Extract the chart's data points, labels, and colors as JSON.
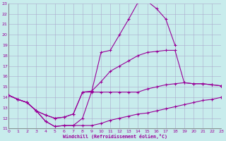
{
  "background_color": "#c8ecec",
  "grid_color": "#aaaacc",
  "line_color": "#990099",
  "xlabel": "Windchill (Refroidissement éolien,°C)",
  "xlim": [
    0,
    23
  ],
  "ylim": [
    11,
    23
  ],
  "xticks": [
    0,
    1,
    2,
    3,
    4,
    5,
    6,
    7,
    8,
    9,
    10,
    11,
    12,
    13,
    14,
    15,
    16,
    17,
    18,
    19,
    20,
    21,
    22,
    23
  ],
  "yticks": [
    11,
    12,
    13,
    14,
    15,
    16,
    17,
    18,
    19,
    20,
    21,
    22,
    23
  ],
  "line_big_x": [
    0,
    1,
    2,
    3,
    4,
    5,
    6,
    7,
    8,
    9,
    10,
    11,
    12,
    13,
    14,
    15,
    16,
    17,
    18
  ],
  "line_big_y": [
    14.2,
    13.8,
    13.5,
    12.7,
    11.7,
    11.2,
    11.3,
    11.3,
    12.0,
    14.6,
    18.3,
    18.5,
    20.0,
    21.5,
    23.1,
    23.2,
    22.5,
    21.5,
    19.0
  ],
  "line_a_x": [
    0,
    1,
    2,
    3,
    4,
    5,
    6,
    7,
    8,
    9,
    10,
    11,
    12,
    13,
    14,
    15,
    16,
    17,
    18,
    19,
    20,
    21,
    22,
    23
  ],
  "line_a_y": [
    14.2,
    13.8,
    13.5,
    12.7,
    11.7,
    11.2,
    11.3,
    11.3,
    11.3,
    11.3,
    11.5,
    11.8,
    12.0,
    12.2,
    12.4,
    12.5,
    12.7,
    12.9,
    13.1,
    13.3,
    13.5,
    13.7,
    13.8,
    14.0
  ],
  "line_b_x": [
    0,
    1,
    2,
    3,
    4,
    5,
    6,
    7,
    8,
    9,
    10,
    11,
    12,
    13,
    14,
    15,
    16,
    17,
    18,
    19,
    20,
    21,
    22,
    23
  ],
  "line_b_y": [
    14.2,
    13.8,
    13.5,
    12.7,
    12.3,
    12.0,
    12.1,
    12.4,
    14.5,
    14.5,
    14.5,
    14.5,
    14.5,
    14.5,
    14.5,
    14.8,
    15.0,
    15.2,
    15.3,
    15.4,
    15.3,
    15.3,
    15.2,
    15.1
  ],
  "line_c_x": [
    0,
    1,
    2,
    3,
    4,
    5,
    6,
    7,
    8,
    9,
    10,
    11,
    12,
    13,
    14,
    15,
    16,
    17,
    18,
    19,
    20,
    21,
    22,
    23
  ],
  "line_c_y": [
    14.2,
    13.8,
    13.5,
    12.7,
    12.3,
    12.0,
    12.1,
    12.4,
    14.5,
    14.6,
    15.5,
    16.5,
    17.0,
    17.5,
    18.0,
    18.3,
    18.4,
    18.5,
    18.5,
    15.4,
    15.3,
    15.3,
    15.2,
    15.1
  ]
}
